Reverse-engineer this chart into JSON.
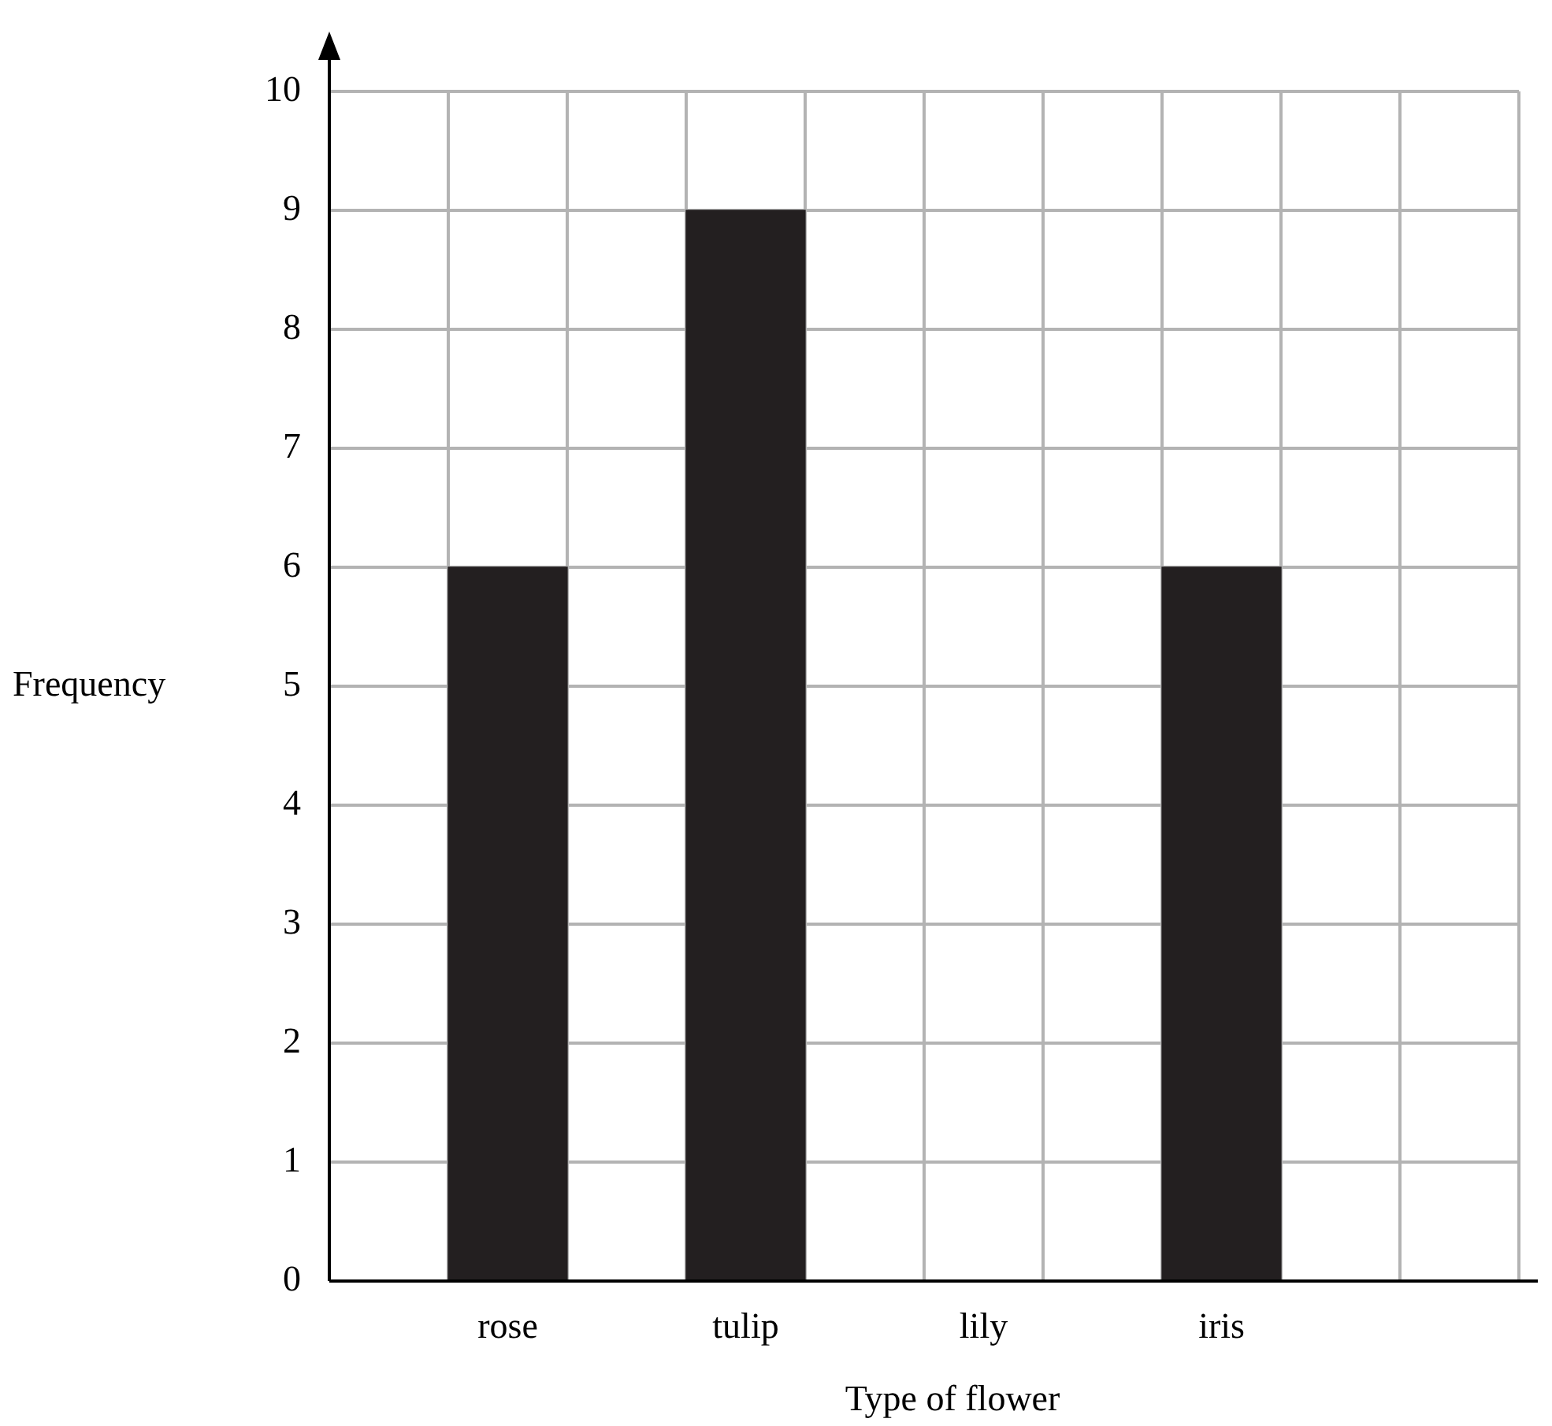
{
  "chart_data": {
    "type": "bar",
    "xlabel": "Type of flower",
    "ylabel": "Frequency",
    "categories": [
      "rose",
      "tulip",
      "lily",
      "iris",
      null
    ],
    "values": [
      6,
      9,
      null,
      6,
      null
    ],
    "color": "#231f20",
    "ylim": [
      0,
      10
    ],
    "yticks": [
      0,
      1,
      2,
      3,
      4,
      5,
      6,
      7,
      8,
      9,
      10
    ],
    "grid": true,
    "legend": false
  }
}
